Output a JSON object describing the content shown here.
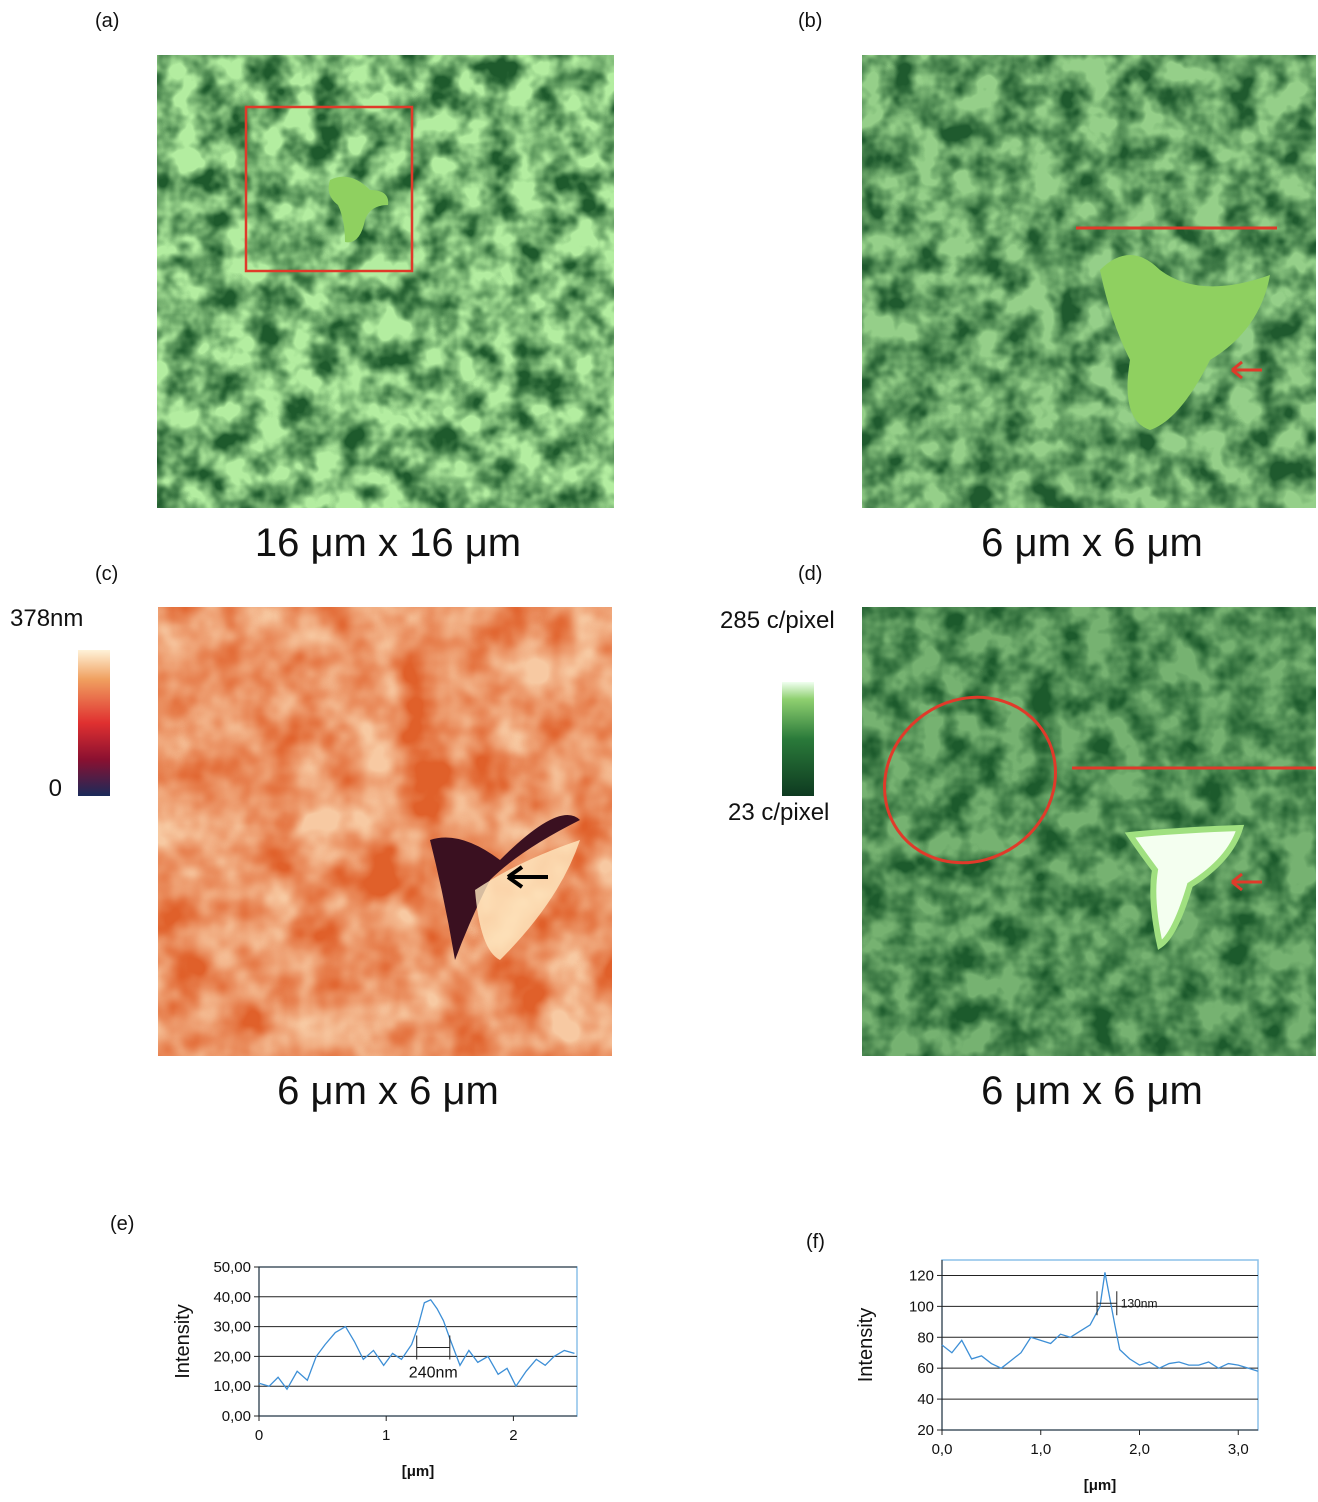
{
  "panels": [
    {
      "label": "(a)",
      "caption": "16 μm x 16 μm"
    },
    {
      "label": "(b)",
      "caption": "6 μm x 6 μm"
    },
    {
      "label": "(c)",
      "caption": "6 μm x 6 μm",
      "scale_max": "378nm",
      "scale_min": "0"
    },
    {
      "label": "(d)",
      "caption": "6 μm x 6 μm",
      "scale_max": "285 c/pixel",
      "scale_min": "23 c/pixel"
    }
  ],
  "chart_data": [
    {
      "type": "line",
      "title": "(e)",
      "x_label": "[μm]",
      "y_label": "Intensity",
      "annotation": "240nm",
      "color": "#3d8fd6",
      "grid": true,
      "x": [
        0,
        0.08,
        0.15,
        0.22,
        0.3,
        0.38,
        0.45,
        0.52,
        0.6,
        0.68,
        0.75,
        0.82,
        0.9,
        0.98,
        1.05,
        1.12,
        1.2,
        1.25,
        1.3,
        1.35,
        1.4,
        1.45,
        1.5,
        1.58,
        1.65,
        1.72,
        1.8,
        1.88,
        1.95,
        2.02,
        2.1,
        2.18,
        2.25,
        2.32,
        2.4,
        2.48
      ],
      "values": [
        11,
        10,
        13,
        9,
        15,
        12,
        20,
        24,
        28,
        30,
        25,
        19,
        22,
        17,
        21,
        19,
        24,
        30,
        38,
        39,
        36,
        32,
        26,
        17,
        22,
        18,
        20,
        14,
        16,
        10,
        15,
        19,
        17,
        20,
        22,
        21
      ],
      "xlim": [
        0,
        2.5
      ],
      "xticks": [
        0,
        1,
        2
      ],
      "ylim": [
        0,
        50
      ],
      "yticks": [
        {
          "value": 0,
          "label": "0,00"
        },
        {
          "value": 10,
          "label": "10,00"
        },
        {
          "value": 20,
          "label": "20,00"
        },
        {
          "value": 30,
          "label": "30,00"
        },
        {
          "value": 40,
          "label": "40,00"
        },
        {
          "value": 50,
          "label": "50,00"
        }
      ]
    },
    {
      "type": "line",
      "title": "(f)",
      "x_label": "[μm]",
      "y_label": "Intensity",
      "annotation": "130nm",
      "color": "#3d8fd6",
      "grid": true,
      "x": [
        0,
        0.1,
        0.2,
        0.3,
        0.4,
        0.5,
        0.6,
        0.7,
        0.8,
        0.9,
        1.0,
        1.1,
        1.2,
        1.3,
        1.4,
        1.5,
        1.6,
        1.65,
        1.7,
        1.75,
        1.8,
        1.9,
        2.0,
        2.1,
        2.2,
        2.3,
        2.4,
        2.5,
        2.6,
        2.7,
        2.8,
        2.9,
        3.0,
        3.1,
        3.2
      ],
      "values": [
        75,
        70,
        78,
        66,
        68,
        63,
        60,
        65,
        70,
        80,
        78,
        76,
        82,
        80,
        84,
        88,
        100,
        122,
        105,
        88,
        72,
        66,
        62,
        64,
        60,
        63,
        64,
        62,
        62,
        64,
        60,
        63,
        62,
        60,
        58
      ],
      "xlim": [
        0,
        3.2
      ],
      "xticks": [
        {
          "value": 0,
          "label": "0,0"
        },
        {
          "value": 1,
          "label": "1,0"
        },
        {
          "value": 2,
          "label": "2,0"
        },
        {
          "value": 3,
          "label": "3,0"
        }
      ],
      "ylim": [
        20,
        130
      ],
      "yticks": [
        20,
        40,
        60,
        80,
        100,
        120
      ]
    }
  ]
}
